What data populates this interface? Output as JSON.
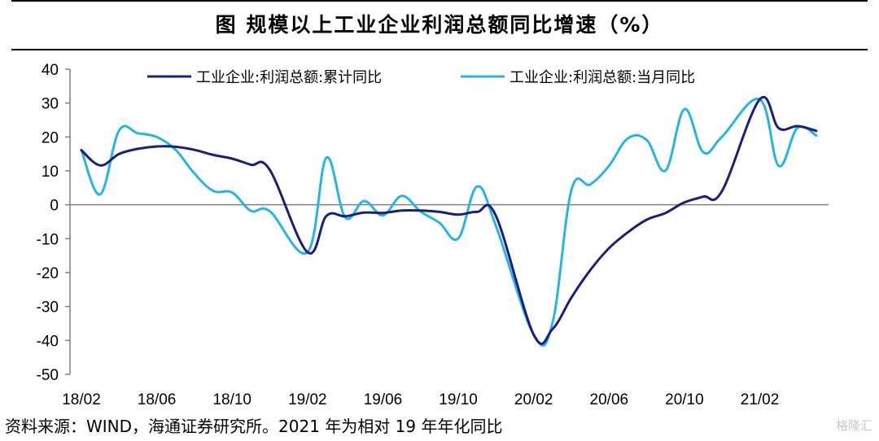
{
  "title": "图  规模以上工业企业利润总额同比增速（%）",
  "source": "资料来源：WIND，海通证券研究所。2021 年为相对 19 年年化同比",
  "watermark": "格隆汇",
  "colors": {
    "cumulative": "#1b1f7a",
    "monthly": "#27b3e8",
    "axis": "#7f7f7f"
  },
  "chart_data": {
    "type": "line",
    "title": "图  规模以上工业企业利润总额同比增速（%）",
    "ylim": [
      -50,
      40
    ],
    "yticks": [
      40,
      30,
      20,
      10,
      0,
      -10,
      -20,
      -30,
      -40,
      -50
    ],
    "x_tick_labels": [
      "18/02",
      "18/06",
      "18/10",
      "19/02",
      "19/06",
      "19/10",
      "20/02",
      "20/06",
      "20/10",
      "21/02"
    ],
    "x_start": "18/02",
    "x_end": "21/05",
    "legend_position": "top",
    "grid": false,
    "series": [
      {
        "name": "工业企业:利润总额:累计同比",
        "x": [
          "18/02",
          "18/03",
          "18/04",
          "18/05",
          "18/06",
          "18/07",
          "18/08",
          "18/09",
          "18/10",
          "18/11",
          "18/12",
          "19/02",
          "19/03",
          "19/04",
          "19/05",
          "19/06",
          "19/07",
          "19/08",
          "19/09",
          "19/10",
          "19/11",
          "19/12",
          "20/02",
          "20/03",
          "20/04",
          "20/05",
          "20/06",
          "20/07",
          "20/08",
          "20/09",
          "20/10",
          "20/11",
          "20/12",
          "21/02",
          "21/03",
          "21/04",
          "21/05"
        ],
        "values": [
          16.1,
          11.6,
          15.0,
          16.5,
          17.2,
          17.1,
          16.2,
          14.7,
          13.6,
          11.8,
          10.3,
          -14.0,
          -3.3,
          -3.4,
          -2.3,
          -2.4,
          -1.7,
          -1.7,
          -2.1,
          -2.9,
          -2.1,
          -3.3,
          -38.3,
          -36.7,
          -27.4,
          -19.3,
          -12.8,
          -8.1,
          -4.4,
          -2.4,
          0.7,
          2.4,
          4.1,
          31.1,
          22.6,
          23.2,
          21.8
        ]
      },
      {
        "name": "工业企业:利润总额:当月同比",
        "x": [
          "18/02",
          "18/03",
          "18/04",
          "18/05",
          "18/06",
          "18/07",
          "18/08",
          "18/09",
          "18/10",
          "18/11",
          "18/12",
          "19/02",
          "19/03",
          "19/04",
          "19/05",
          "19/06",
          "19/07",
          "19/08",
          "19/09",
          "19/10",
          "19/11",
          "19/12",
          "20/02",
          "20/03",
          "20/04",
          "20/05",
          "20/06",
          "20/07",
          "20/08",
          "20/09",
          "20/10",
          "20/11",
          "20/12",
          "21/02",
          "21/03",
          "21/04",
          "21/05"
        ],
        "values": [
          16.1,
          3.1,
          21.9,
          21.1,
          20.0,
          16.2,
          9.2,
          4.1,
          3.6,
          -1.8,
          -1.9,
          -14.0,
          13.9,
          -3.7,
          1.1,
          -3.1,
          2.6,
          -2.0,
          -5.3,
          -9.9,
          5.4,
          -6.3,
          -38.3,
          -34.9,
          4.3,
          6.0,
          11.5,
          19.6,
          19.1,
          10.1,
          28.2,
          15.5,
          20.1,
          31.1,
          11.5,
          22.7,
          20.4
        ]
      }
    ]
  }
}
